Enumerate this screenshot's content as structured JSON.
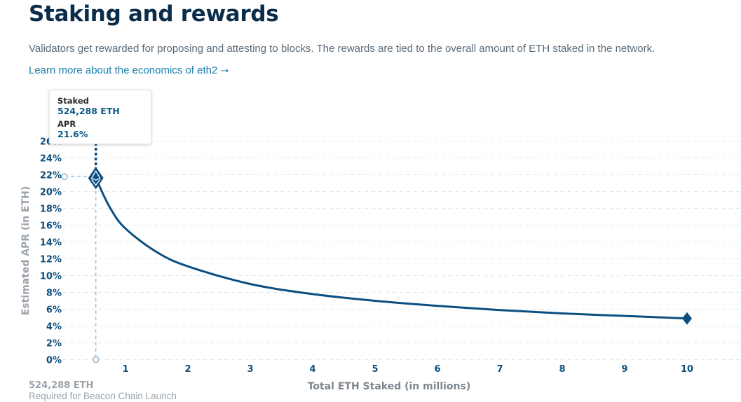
{
  "page": {
    "title": "Staking and rewards",
    "description": "Validators get rewarded for proposing and attesting to blocks. The rewards are tied to the overall amount of ETH staked in the network.",
    "learn_more": "Learn more about the economics of eth2 ⭢"
  },
  "tooltip": {
    "staked_label": "Staked",
    "staked_value": "524,288 ETH",
    "apr_label": "APR",
    "apr_value": "21.6%"
  },
  "footer": {
    "value": "524,288 ETH",
    "caption": "Required for Beacon Chain Launch"
  },
  "colors": {
    "line": "#0b4f82",
    "guide": "#9fc0d6",
    "grid": "#e2e6ea",
    "tick": "#0e4f7d"
  },
  "chart_data": {
    "type": "line",
    "xlabel": "Total ETH Staked  (in millions)",
    "ylabel": "Estimated APR (in ETH)",
    "xlim": [
      0,
      11
    ],
    "ylim": [
      0,
      26
    ],
    "x_ticks": [
      1,
      2,
      3,
      4,
      5,
      6,
      7,
      8,
      9,
      10
    ],
    "y_ticks": [
      0,
      2,
      4,
      6,
      8,
      10,
      12,
      14,
      16,
      18,
      20,
      22,
      24,
      26
    ],
    "y_tick_suffix": "%",
    "grid": true,
    "series": [
      {
        "x": [
          0.524288,
          0.75,
          1,
          1.5,
          2,
          3,
          4,
          5,
          6,
          7,
          8,
          9,
          10
        ],
        "y": [
          21.6,
          18.1,
          15.6,
          12.8,
          11.1,
          9.0,
          7.8,
          7.0,
          6.4,
          5.9,
          5.5,
          5.2,
          4.9
        ]
      }
    ],
    "highlight": {
      "x": 0.524288,
      "y": 21.6
    },
    "end_marker": {
      "x": 10,
      "y": 4.9
    }
  }
}
